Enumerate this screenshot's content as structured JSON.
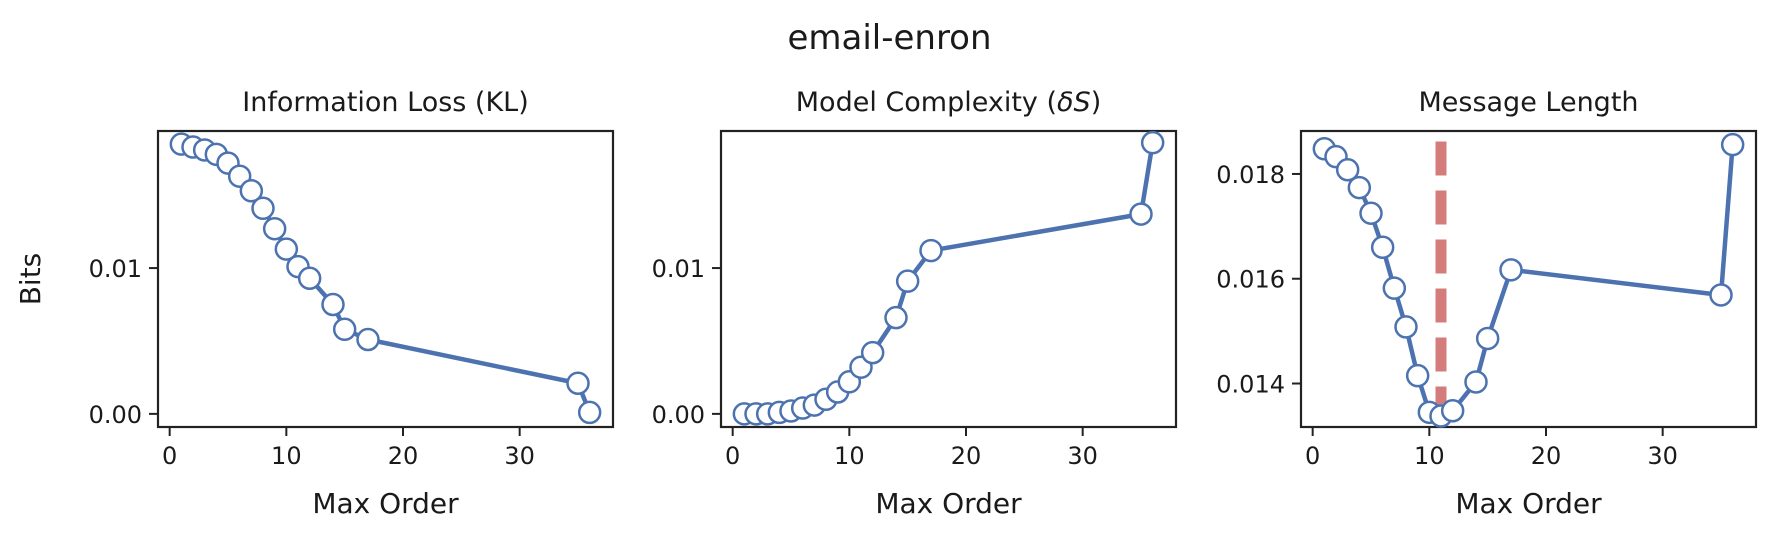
{
  "figure": {
    "title": "email-enron"
  },
  "colors": {
    "line": "#4c72b0",
    "marker_face": "#ffffff",
    "marker_edge": "#4c72b0",
    "vline": "#d47c7c",
    "axis": "#222222"
  },
  "chart_data": [
    {
      "type": "line",
      "title": "Information Loss (KL)",
      "xlabel": "Max Order",
      "ylabel": "Bits",
      "xlim": [
        -1,
        38
      ],
      "ylim": [
        -0.0009,
        0.0194
      ],
      "xticks": [
        0,
        10,
        20,
        30
      ],
      "xtick_labels": [
        "0",
        "10",
        "20",
        "30"
      ],
      "yticks": [
        0.0,
        0.01
      ],
      "ytick_labels": [
        "0.00",
        "0.01"
      ],
      "grid": false,
      "x": [
        1,
        2,
        3,
        4,
        5,
        6,
        7,
        8,
        9,
        10,
        11,
        12,
        14,
        15,
        17,
        35,
        36
      ],
      "series": [
        {
          "values": [
            0.0185,
            0.0183,
            0.0181,
            0.0178,
            0.0172,
            0.0163,
            0.0153,
            0.0141,
            0.0127,
            0.0113,
            0.0101,
            0.0093,
            0.0075,
            0.0058,
            0.0051,
            0.0021,
            0.0001
          ]
        }
      ]
    },
    {
      "type": "line",
      "title": "Model Complexity (δS)",
      "title_parts": [
        "Model Complexity (",
        "δS",
        ")"
      ],
      "xlabel": "Max Order",
      "xlim": [
        -1,
        38
      ],
      "ylim": [
        -0.0009,
        0.0194
      ],
      "xticks": [
        0,
        10,
        20,
        30
      ],
      "xtick_labels": [
        "0",
        "10",
        "20",
        "30"
      ],
      "yticks": [
        0.0,
        0.01
      ],
      "ytick_labels": [
        "0.00",
        "0.01"
      ],
      "grid": false,
      "x": [
        1,
        2,
        3,
        4,
        5,
        6,
        7,
        8,
        9,
        10,
        11,
        12,
        14,
        15,
        17,
        35,
        36
      ],
      "series": [
        {
          "values": [
            0.0,
            0.0,
            0.0,
            0.0001,
            0.0002,
            0.0004,
            0.0006,
            0.001,
            0.0015,
            0.0022,
            0.0032,
            0.0042,
            0.0066,
            0.0091,
            0.0112,
            0.0137,
            0.0186
          ]
        }
      ]
    },
    {
      "type": "line",
      "title": "Message Length",
      "xlabel": "Max Order",
      "xlim": [
        -1,
        38
      ],
      "ylim": [
        0.01317,
        0.01882
      ],
      "xticks": [
        0,
        10,
        20,
        30
      ],
      "xtick_labels": [
        "0",
        "10",
        "20",
        "30"
      ],
      "yticks": [
        0.014,
        0.016,
        0.018
      ],
      "ytick_labels": [
        "0.014",
        "0.016",
        "0.018"
      ],
      "grid": false,
      "vline": {
        "x": 11,
        "y_from": 0.01338,
        "y_to": 0.01862,
        "style": "dashed"
      },
      "x": [
        1,
        2,
        3,
        4,
        5,
        6,
        7,
        8,
        9,
        10,
        11,
        12,
        14,
        15,
        17,
        35,
        36
      ],
      "series": [
        {
          "values": [
            0.01848,
            0.01833,
            0.01808,
            0.01774,
            0.01725,
            0.0166,
            0.01582,
            0.01508,
            0.01415,
            0.01345,
            0.01338,
            0.01348,
            0.01403,
            0.01486,
            0.01617,
            0.01569,
            0.01856
          ]
        }
      ]
    }
  ]
}
